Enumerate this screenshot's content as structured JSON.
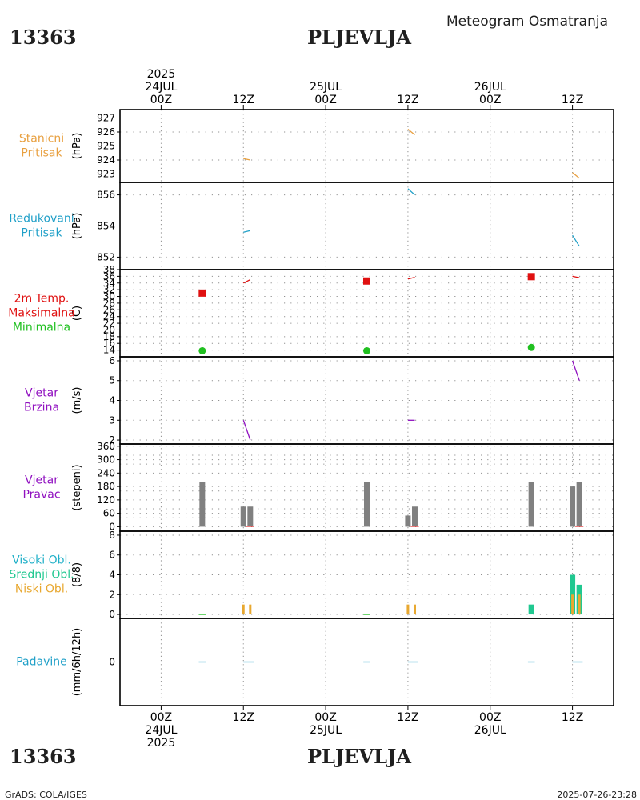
{
  "header": {
    "station_id": "13363",
    "station_name": "PLJEVLJA",
    "meteogram_title": "Meteogram Osmatranja"
  },
  "footer": {
    "station_id": "13363",
    "station_name": "PLJEVLJA",
    "credit": "GrADS: COLA/IGES",
    "timestamp": "2025-07-26-23:28"
  },
  "colors": {
    "pressure_station": "#e8a040",
    "pressure_reduced": "#20a0c8",
    "tmax": "#e01010",
    "tmin": "#20c020",
    "wind": "#9010c0",
    "bars_gray": "#808080",
    "cloud_high": "#20b0c8",
    "cloud_mid": "#20c890",
    "cloud_low": "#e8a830",
    "precip": "#20a0c8"
  },
  "chart_data": {
    "type": "meteogram",
    "time_axis": {
      "unit": "hours since 2025-07-24 00Z",
      "xlim": [
        -6,
        66
      ],
      "top_ticks": [
        {
          "h": 0,
          "lines": [
            "2025",
            "24JUL",
            "00Z"
          ]
        },
        {
          "h": 12,
          "lines": [
            "12Z"
          ]
        },
        {
          "h": 24,
          "lines": [
            "25JUL",
            "00Z"
          ]
        },
        {
          "h": 36,
          "lines": [
            "12Z"
          ]
        },
        {
          "h": 48,
          "lines": [
            "26JUL",
            "00Z"
          ]
        },
        {
          "h": 60,
          "lines": [
            "12Z"
          ]
        }
      ],
      "bottom_ticks": [
        {
          "h": 0,
          "lines": [
            "00Z",
            "24JUL",
            "2025"
          ]
        },
        {
          "h": 12,
          "lines": [
            "12Z"
          ]
        },
        {
          "h": 24,
          "lines": [
            "00Z",
            "25JUL"
          ]
        },
        {
          "h": 36,
          "lines": [
            "12Z"
          ]
        },
        {
          "h": 48,
          "lines": [
            "00Z",
            "26JUL"
          ]
        },
        {
          "h": 60,
          "lines": [
            "12Z"
          ]
        }
      ]
    },
    "panels": [
      {
        "id": "station-pressure",
        "labels": [
          {
            "text": "Stanicni",
            "color": "#e8a040"
          },
          {
            "text": "Pritisak",
            "color": "#e8a040"
          }
        ],
        "unit": "(hPa)",
        "ylim": [
          922.4,
          927.6
        ],
        "yticks": [
          923,
          924,
          925,
          926,
          927
        ],
        "series": [
          {
            "name": "Stanicni Pritisak",
            "kind": "line",
            "color": "#e8a040",
            "segments": [
              [
                [
                  12,
                  924.1
                ],
                [
                  13,
                  924.0
                ]
              ],
              [
                [
                  36,
                  926.2
                ],
                [
                  37,
                  925.8
                ]
              ],
              [
                [
                  60,
                  923.1
                ],
                [
                  61,
                  922.7
                ]
              ]
            ]
          }
        ]
      },
      {
        "id": "reduced-pressure",
        "labels": [
          {
            "text": "Redukovani",
            "color": "#20a0c8"
          },
          {
            "text": "Pritisak",
            "color": "#20a0c8"
          }
        ],
        "unit": "(hPa)",
        "ylim": [
          851.2,
          856.8
        ],
        "yticks": [
          852,
          854,
          856
        ],
        "series": [
          {
            "name": "Redukovani Pritisak",
            "kind": "line",
            "color": "#20a0c8",
            "segments": [
              [
                [
                  12,
                  853.6
                ],
                [
                  13,
                  853.7
                ]
              ],
              [
                [
                  36,
                  856.4
                ],
                [
                  37,
                  856.0
                ]
              ],
              [
                [
                  60,
                  853.4
                ],
                [
                  61,
                  852.7
                ]
              ]
            ]
          }
        ]
      },
      {
        "id": "temperature",
        "labels": [
          {
            "text": "2m Temp.",
            "color": "#e01010"
          },
          {
            "text": "Maksimalna",
            "color": "#e01010"
          },
          {
            "text": "Minimalna",
            "color": "#20c020"
          }
        ],
        "unit": "(C)",
        "ylim": [
          12,
          38
        ],
        "yticks": [
          14,
          16,
          18,
          20,
          22,
          24,
          26,
          28,
          30,
          32,
          34,
          36,
          38
        ],
        "series": [
          {
            "name": "2m Temp.",
            "kind": "line",
            "color": "#e01010",
            "segments": [
              [
                [
                  12,
                  34.0
                ],
                [
                  13,
                  35.0
                ]
              ],
              [
                [
                  36,
                  35.2
                ],
                [
                  37,
                  35.7
                ]
              ],
              [
                [
                  60,
                  36.0
                ],
                [
                  61,
                  35.6
                ]
              ]
            ]
          },
          {
            "name": "Maksimalna",
            "kind": "square",
            "color": "#e01010",
            "points": [
              [
                6,
                31.0
              ],
              [
                30,
                34.6
              ],
              [
                54,
                35.9
              ]
            ]
          },
          {
            "name": "Minimalna",
            "kind": "dot",
            "color": "#20c020",
            "points": [
              [
                6,
                13.8
              ],
              [
                30,
                13.8
              ],
              [
                54,
                14.8
              ]
            ]
          }
        ]
      },
      {
        "id": "wind-speed",
        "labels": [
          {
            "text": "Vjetar",
            "color": "#9010c0"
          },
          {
            "text": "Brzina",
            "color": "#9010c0"
          }
        ],
        "unit": "(m/s)",
        "ylim": [
          1.8,
          6.2
        ],
        "yticks": [
          2,
          3,
          4,
          5,
          6
        ],
        "series": [
          {
            "name": "Vjetar Brzina",
            "kind": "line",
            "color": "#9010c0",
            "segments": [
              [
                [
                  12,
                  3.0
                ],
                [
                  13,
                  2.0
                ]
              ],
              [
                [
                  36,
                  3.0
                ],
                [
                  37,
                  3.0
                ]
              ],
              [
                [
                  60,
                  6.0
                ],
                [
                  61,
                  5.0
                ]
              ]
            ]
          }
        ]
      },
      {
        "id": "wind-direction",
        "labels": [
          {
            "text": "Vjetar",
            "color": "#9010c0"
          },
          {
            "text": "Pravac",
            "color": "#9010c0"
          }
        ],
        "unit": "(stepeni)",
        "ylim": [
          -20,
          370
        ],
        "yticks": [
          0,
          60,
          120,
          180,
          240,
          300,
          360
        ],
        "yticks_minor": [
          40,
          80,
          160,
          200,
          280,
          320
        ],
        "series": [
          {
            "name": "Vjetar Pravac",
            "kind": "bar",
            "color": "#808080",
            "points": [
              [
                6,
                200
              ],
              [
                12,
                90
              ],
              [
                13,
                90
              ],
              [
                30,
                200
              ],
              [
                36,
                50
              ],
              [
                37,
                90
              ],
              [
                54,
                200
              ],
              [
                60,
                180
              ],
              [
                61,
                200
              ]
            ]
          },
          {
            "name": "Pravac mark",
            "kind": "line",
            "color": "#e01010",
            "segments": [
              [
                [
                  12.4,
                  2
                ],
                [
                  13.6,
                  2
                ]
              ],
              [
                [
                  36.4,
                  2
                ],
                [
                  37.6,
                  2
                ]
              ],
              [
                [
                  60.4,
                  2
                ],
                [
                  61.6,
                  2
                ]
              ]
            ]
          }
        ]
      },
      {
        "id": "clouds",
        "labels": [
          {
            "text": "Visoki Obl.",
            "color": "#20b0c8"
          },
          {
            "text": "Srednji Obl.",
            "color": "#20c890"
          },
          {
            "text": "Niski Obl.",
            "color": "#e8a830"
          }
        ],
        "unit": "(8/8)",
        "ylim": [
          -0.4,
          8.4
        ],
        "yticks": [
          0,
          2,
          4,
          6,
          8
        ],
        "series": [
          {
            "name": "Srednji Obl.",
            "kind": "bar",
            "color": "#20c890",
            "points": [
              [
                54,
                1
              ],
              [
                60,
                4
              ],
              [
                61,
                3
              ]
            ]
          },
          {
            "name": "Niski Obl.",
            "kind": "bar_thin",
            "color": "#e8a830",
            "points": [
              [
                12,
                1
              ],
              [
                13,
                1
              ],
              [
                36,
                1
              ],
              [
                37,
                1
              ],
              [
                60,
                2
              ],
              [
                61,
                2
              ]
            ]
          },
          {
            "name": "Visoki Obl.",
            "kind": "line",
            "color": "#20c020",
            "segments": [
              [
                [
                  5.5,
                  0
                ],
                [
                  6.5,
                  0
                ]
              ],
              [
                [
                  29.5,
                  0
                ],
                [
                  30.5,
                  0
                ]
              ]
            ]
          }
        ]
      },
      {
        "id": "precipitation",
        "labels": [
          {
            "text": "Padavine",
            "color": "#20a0c8"
          }
        ],
        "unit": "(mm/6h/12h)",
        "ylim": [
          -4.8,
          4.8
        ],
        "yticks": [
          0
        ],
        "series": [
          {
            "name": "Padavine",
            "kind": "line",
            "color": "#20a0c8",
            "segments": [
              [
                [
                  5.5,
                  0
                ],
                [
                  6.5,
                  0
                ]
              ],
              [
                [
                  12,
                  0
                ],
                [
                  13.5,
                  0
                ]
              ],
              [
                [
                  29.5,
                  0
                ],
                [
                  30.5,
                  0
                ]
              ],
              [
                [
                  36,
                  0
                ],
                [
                  37.5,
                  0
                ]
              ],
              [
                [
                  53.5,
                  0
                ],
                [
                  54.5,
                  0
                ]
              ],
              [
                [
                  60,
                  0
                ],
                [
                  61.5,
                  0
                ]
              ]
            ]
          }
        ]
      }
    ]
  }
}
